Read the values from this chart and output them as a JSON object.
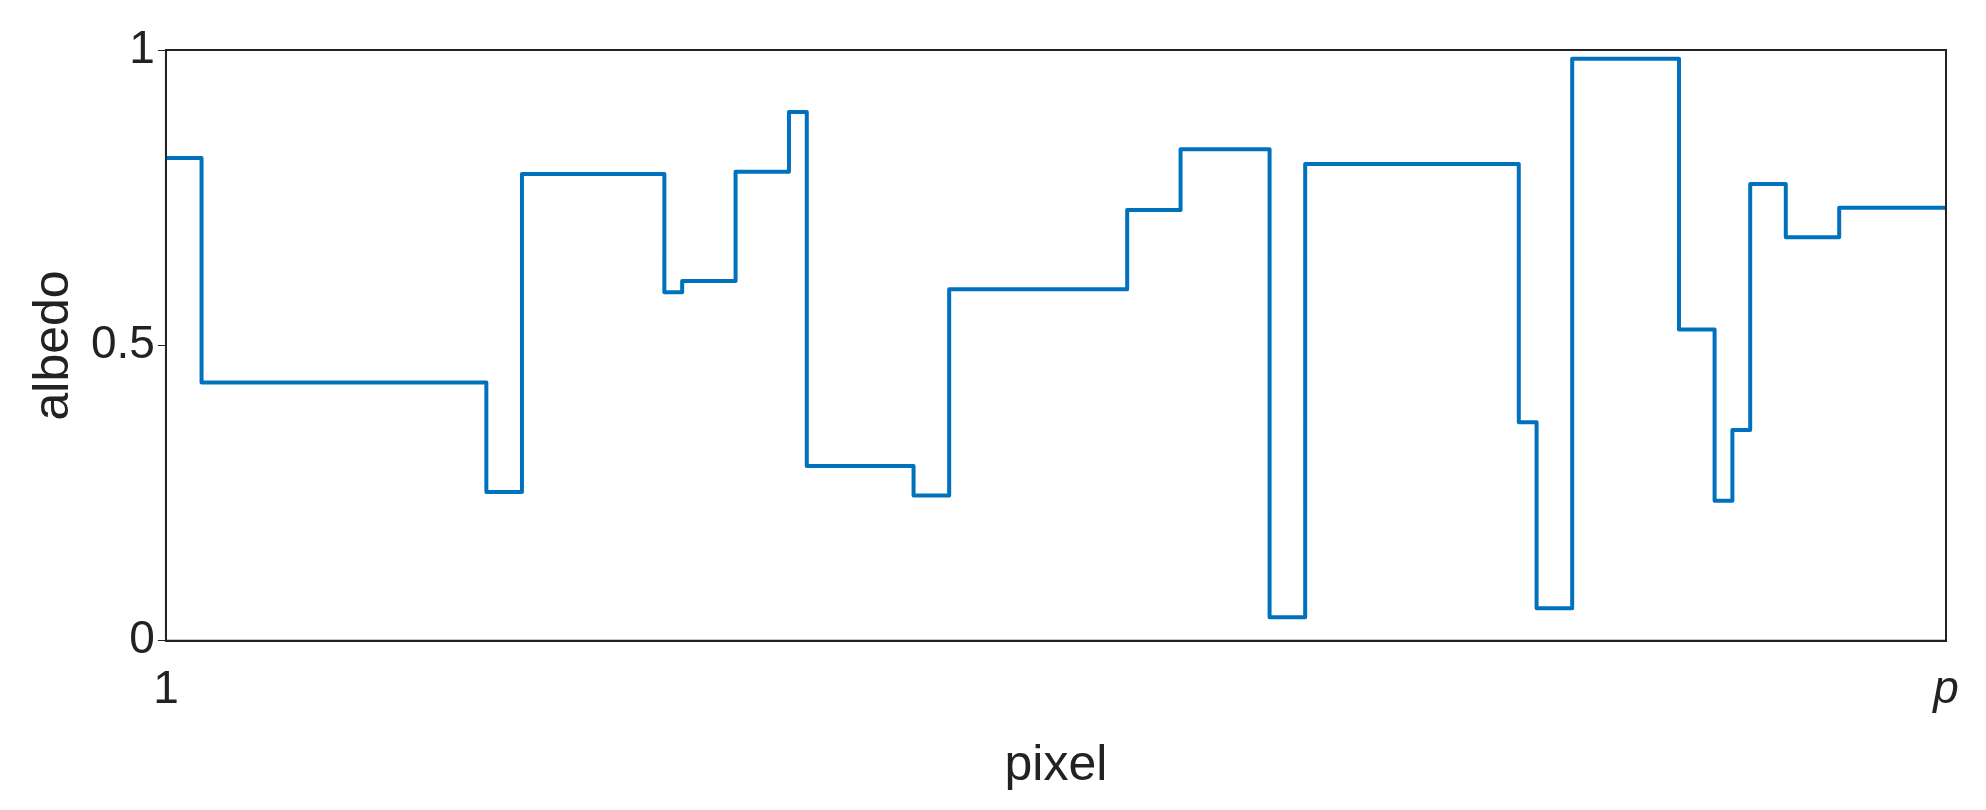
{
  "chart_data": {
    "type": "step",
    "xlabel": "pixel",
    "ylabel": "albedo",
    "categories": [
      "1",
      null,
      null,
      null,
      null,
      null,
      null,
      null,
      null,
      null,
      null,
      null,
      null,
      null,
      null,
      null,
      null,
      null,
      null,
      null,
      null,
      null,
      null,
      null,
      null,
      null,
      null,
      null,
      null,
      null,
      null,
      null,
      null,
      null,
      null,
      null,
      null,
      null,
      null,
      null,
      null,
      null,
      null,
      null,
      null,
      null,
      null,
      null,
      null,
      null,
      null,
      null,
      null,
      null,
      null,
      null,
      null,
      null,
      null,
      null,
      null,
      null,
      null,
      null,
      null,
      null,
      null,
      null,
      null,
      null,
      null,
      null,
      null,
      null,
      null,
      null,
      null,
      null,
      null,
      null,
      null,
      null,
      null,
      null,
      null,
      null,
      null,
      null,
      null,
      null,
      null,
      null,
      null,
      null,
      null,
      null,
      null,
      null,
      null,
      null,
      "p"
    ],
    "values": [
      0.817,
      0.817,
      0.437,
      0.437,
      0.437,
      0.437,
      0.437,
      0.437,
      0.437,
      0.437,
      0.437,
      0.437,
      0.437,
      0.437,
      0.437,
      0.437,
      0.437,
      0.437,
      0.252,
      0.252,
      0.79,
      0.79,
      0.79,
      0.79,
      0.79,
      0.79,
      0.79,
      0.79,
      0.59,
      0.609,
      0.609,
      0.609,
      0.794,
      0.794,
      0.794,
      0.895,
      0.296,
      0.296,
      0.296,
      0.296,
      0.296,
      0.296,
      0.246,
      0.246,
      0.595,
      0.595,
      0.595,
      0.595,
      0.595,
      0.595,
      0.595,
      0.595,
      0.595,
      0.595,
      0.729,
      0.729,
      0.729,
      0.832,
      0.832,
      0.832,
      0.832,
      0.832,
      0.04,
      0.04,
      0.807,
      0.807,
      0.807,
      0.807,
      0.807,
      0.807,
      0.807,
      0.807,
      0.807,
      0.807,
      0.807,
      0.807,
      0.37,
      0.055,
      0.055,
      0.985,
      0.985,
      0.985,
      0.985,
      0.985,
      0.985,
      0.527,
      0.527,
      0.237,
      0.357,
      0.773,
      0.773,
      0.683,
      0.683,
      0.683,
      0.733,
      0.733,
      0.733,
      0.733,
      0.733,
      0.733,
      0.733
    ],
    "color": "#0072bd",
    "ylim": [
      0,
      1
    ],
    "yticks": [
      0,
      0.5,
      1
    ],
    "grid": false
  }
}
